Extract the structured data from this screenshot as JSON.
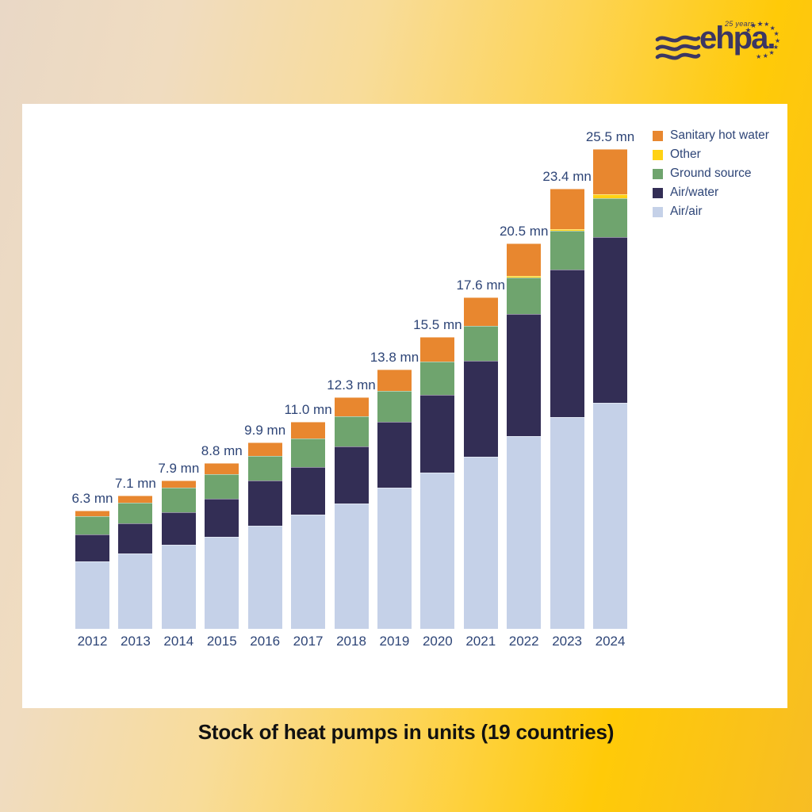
{
  "page": {
    "caption": "Stock of heat pumps in units (19 countries)"
  },
  "logo": {
    "brand": "ehpa.",
    "anniversary": "25 years"
  },
  "icons": {
    "star": "★",
    "wave": "≈"
  },
  "colors": {
    "sanitary_hot_water": "#E8872F",
    "other": "#FFD214",
    "ground_source": "#6FA46E",
    "air_water": "#332E55",
    "air_air": "#C5D1E8",
    "label_text": "#2E4577",
    "caption_text": "#111111",
    "logo_navy": "#3B3663",
    "panel_background": "#FFFFFF"
  },
  "legend": {
    "position": "top-right",
    "items": [
      {
        "label": "Sanitary hot water",
        "color": "#E8872F"
      },
      {
        "label": "Other",
        "color": "#FFD214"
      },
      {
        "label": "Ground source",
        "color": "#6FA46E"
      },
      {
        "label": "Air/water",
        "color": "#332E55"
      },
      {
        "label": "Air/air",
        "color": "#C5D1E8"
      }
    ]
  },
  "chart_data": {
    "type": "bar",
    "stacked": true,
    "title": "Stock of heat pumps in units (19 countries)",
    "unit": "mn units",
    "grid": false,
    "legend_position": "top-right",
    "ylim": [
      0,
      26
    ],
    "categories": [
      "2012",
      "2013",
      "2014",
      "2015",
      "2016",
      "2017",
      "2018",
      "2019",
      "2020",
      "2021",
      "2022",
      "2023",
      "2024"
    ],
    "totals": [
      6.3,
      7.1,
      7.9,
      8.8,
      9.9,
      11.0,
      12.3,
      13.8,
      15.5,
      17.6,
      20.5,
      23.4,
      25.5
    ],
    "totals_labels": [
      "6.3 mn",
      "7.1 mn",
      "7.9 mn",
      "8.8 mn",
      "9.9 mn",
      "11.0 mn",
      "12.3 mn",
      "13.8 mn",
      "15.5 mn",
      "17.6 mn",
      "20.5 mn",
      "23.4 mn",
      "25.5 mn"
    ],
    "series": [
      {
        "name": "Air/air",
        "key": "air-air",
        "color": "#C5D1E8",
        "values": [
          3.6,
          4.0,
          4.45,
          4.9,
          5.5,
          6.05,
          6.65,
          7.5,
          8.3,
          9.15,
          10.25,
          11.25,
          12.0
        ]
      },
      {
        "name": "Air/water",
        "key": "air-water",
        "color": "#332E55",
        "values": [
          1.4,
          1.6,
          1.75,
          2.0,
          2.4,
          2.55,
          3.05,
          3.5,
          4.15,
          5.1,
          6.5,
          7.85,
          8.8
        ]
      },
      {
        "name": "Ground source",
        "key": "ground-source",
        "color": "#6FA46E",
        "values": [
          1.0,
          1.1,
          1.3,
          1.3,
          1.3,
          1.5,
          1.6,
          1.65,
          1.75,
          1.85,
          1.9,
          2.05,
          2.1
        ]
      },
      {
        "name": "Other",
        "key": "other",
        "color": "#FFD214",
        "values": [
          0,
          0,
          0,
          0,
          0,
          0,
          0,
          0,
          0,
          0,
          0.1,
          0.1,
          0.2
        ]
      },
      {
        "name": "Sanitary hot water",
        "key": "sanitary-hot-water",
        "color": "#E8872F",
        "values": [
          0.3,
          0.4,
          0.4,
          0.6,
          0.7,
          0.9,
          1.0,
          1.15,
          1.3,
          1.5,
          1.75,
          2.15,
          2.4
        ]
      }
    ]
  }
}
